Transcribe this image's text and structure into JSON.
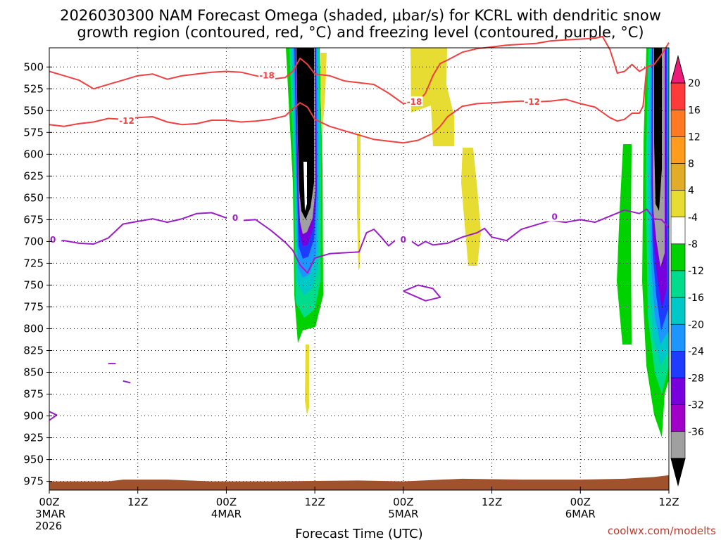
{
  "chart_data": {
    "type": "heatmap",
    "title_lines": [
      "2026030300 NAM Forecast Omega (shaded, μbar/s) for KCRL with dendritic snow",
      "growth region (contoured, red, °C) and freezing level (contoured, purple, °C)"
    ],
    "xlabel": "Forecast Time (UTC)",
    "credit": "coolwx.com/modelts",
    "x_ticks": [
      {
        "h": 0,
        "lines": [
          "00Z",
          "3MAR",
          "2026"
        ]
      },
      {
        "h": 12,
        "lines": [
          "12Z"
        ]
      },
      {
        "h": 24,
        "lines": [
          "00Z",
          "4MAR"
        ]
      },
      {
        "h": 36,
        "lines": [
          "12Z"
        ]
      },
      {
        "h": 48,
        "lines": [
          "00Z",
          "5MAR"
        ]
      },
      {
        "h": 60,
        "lines": [
          "12Z"
        ]
      },
      {
        "h": 72,
        "lines": [
          "00Z",
          "6MAR"
        ]
      },
      {
        "h": 84,
        "lines": [
          "12Z"
        ]
      }
    ],
    "xlim_hours": [
      0,
      84
    ],
    "y_ticks": [
      "500",
      "525",
      "550",
      "575",
      "600",
      "625",
      "650",
      "675",
      "700",
      "725",
      "750",
      "775",
      "800",
      "825",
      "850",
      "875",
      "900",
      "925",
      "950",
      "975"
    ],
    "ylim_hPa": [
      478,
      985
    ],
    "grid": true,
    "colorbar": {
      "labels": [
        "20",
        "16",
        "12",
        "8",
        "4",
        "-4",
        "-8",
        "-12",
        "-16",
        "-20",
        "-24",
        "-28",
        "-32",
        "-36"
      ],
      "colors": [
        "#ec1c7a",
        "#ff3a3a",
        "#ff7a22",
        "#ff9c1e",
        "#e1ad28",
        "#e6dc32",
        "#ffffff",
        "#00d200",
        "#00dc8c",
        "#00c8c8",
        "#1e96ff",
        "#1e3cff",
        "#7800dc",
        "#a000c8",
        "#a0a0a0",
        "#000000"
      ]
    },
    "contour_labels": {
      "dgz_warm": "-12",
      "dgz_cold": "-18",
      "freezing": "0"
    },
    "colors": {
      "dgz": "#f04040",
      "freezing": "#9a1ec8",
      "terrain": "#a0522d"
    },
    "series": [
      {
        "contour": "-18",
        "points": [
          [
            0,
            505
          ],
          [
            2,
            510
          ],
          [
            4,
            515
          ],
          [
            6,
            525
          ],
          [
            8,
            520
          ],
          [
            10,
            515
          ],
          [
            12,
            510
          ],
          [
            14,
            508
          ],
          [
            16,
            514
          ],
          [
            18,
            510
          ],
          [
            20,
            508
          ],
          [
            22,
            506
          ],
          [
            24,
            505
          ],
          [
            26,
            506
          ],
          [
            28,
            510
          ],
          [
            30,
            514
          ],
          [
            32,
            512
          ],
          [
            33,
            505
          ],
          [
            34,
            490
          ],
          [
            35,
            497
          ],
          [
            36,
            508
          ],
          [
            38,
            510
          ],
          [
            40,
            516
          ],
          [
            42,
            518
          ],
          [
            44,
            520
          ],
          [
            46,
            530
          ],
          [
            48,
            542
          ],
          [
            50,
            540
          ],
          [
            51,
            530
          ],
          [
            52,
            510
          ],
          [
            53,
            496
          ],
          [
            54,
            492
          ],
          [
            56,
            483
          ],
          [
            58,
            479
          ],
          [
            60,
            477
          ],
          [
            62,
            475
          ],
          [
            64,
            474
          ],
          [
            66,
            473
          ],
          [
            68,
            470
          ],
          [
            70,
            469
          ],
          [
            72,
            468
          ],
          [
            74,
            467
          ],
          [
            75,
            465
          ],
          [
            76,
            480
          ],
          [
            76.5,
            493
          ],
          [
            77,
            507
          ],
          [
            78,
            505
          ],
          [
            79,
            497
          ],
          [
            80,
            505
          ],
          [
            81,
            500
          ],
          [
            82,
            497
          ],
          [
            83,
            486
          ],
          [
            84,
            472
          ]
        ]
      },
      {
        "contour": "-12",
        "points": [
          [
            0,
            566
          ],
          [
            2,
            568
          ],
          [
            4,
            565
          ],
          [
            6,
            563
          ],
          [
            8,
            559
          ],
          [
            10,
            560
          ],
          [
            12,
            558
          ],
          [
            14,
            557
          ],
          [
            16,
            563
          ],
          [
            18,
            566
          ],
          [
            20,
            565
          ],
          [
            22,
            561
          ],
          [
            24,
            561
          ],
          [
            26,
            563
          ],
          [
            28,
            562
          ],
          [
            30,
            560
          ],
          [
            32,
            556
          ],
          [
            33,
            548
          ],
          [
            34,
            541
          ],
          [
            35,
            546
          ],
          [
            36,
            560
          ],
          [
            38,
            568
          ],
          [
            40,
            573
          ],
          [
            42,
            578
          ],
          [
            44,
            583
          ],
          [
            46,
            585
          ],
          [
            48,
            587
          ],
          [
            50,
            584
          ],
          [
            52,
            576
          ],
          [
            53,
            568
          ],
          [
            54,
            557
          ],
          [
            56,
            545
          ],
          [
            58,
            542
          ],
          [
            60,
            541
          ],
          [
            62,
            540
          ],
          [
            64,
            539
          ],
          [
            66,
            540
          ],
          [
            68,
            539
          ],
          [
            70,
            537
          ],
          [
            72,
            542
          ],
          [
            74,
            546
          ],
          [
            76,
            558
          ],
          [
            77,
            562
          ],
          [
            78,
            560
          ],
          [
            79,
            553
          ],
          [
            80,
            553
          ],
          [
            80.5,
            545
          ],
          [
            81,
            500
          ]
        ]
      },
      {
        "contour": "0",
        "points": [
          [
            0,
            700
          ],
          [
            2,
            699
          ],
          [
            4,
            702
          ],
          [
            6,
            703
          ],
          [
            8,
            696
          ],
          [
            10,
            680
          ],
          [
            12,
            677
          ],
          [
            14,
            674
          ],
          [
            16,
            678
          ],
          [
            18,
            674
          ],
          [
            20,
            668
          ],
          [
            22,
            667
          ],
          [
            24,
            673
          ],
          [
            26,
            676
          ],
          [
            28,
            675
          ],
          [
            30,
            687
          ],
          [
            32,
            701
          ],
          [
            33,
            710
          ],
          [
            34,
            727
          ],
          [
            35,
            736
          ],
          [
            36,
            719
          ],
          [
            38,
            714
          ],
          [
            40,
            713
          ],
          [
            42,
            712
          ],
          [
            43,
            690
          ],
          [
            44,
            686
          ],
          [
            45,
            695
          ],
          [
            46,
            705
          ],
          [
            47,
            698
          ],
          [
            48,
            696
          ],
          [
            49,
            699
          ],
          [
            50,
            705
          ],
          [
            51,
            700
          ],
          [
            52,
            704
          ],
          [
            54,
            702
          ],
          [
            56,
            695
          ],
          [
            58,
            690
          ],
          [
            59,
            685
          ],
          [
            60,
            695
          ],
          [
            62,
            699
          ],
          [
            64,
            686
          ],
          [
            66,
            681
          ],
          [
            68,
            676
          ],
          [
            70,
            678
          ],
          [
            72,
            675
          ],
          [
            74,
            678
          ],
          [
            76,
            671
          ],
          [
            78,
            664
          ],
          [
            80,
            668
          ],
          [
            81,
            663
          ],
          [
            82,
            674
          ],
          [
            83,
            675
          ],
          [
            84,
            684
          ]
        ]
      },
      {
        "contour": "0",
        "points": [
          [
            0,
            895
          ],
          [
            1,
            899
          ],
          [
            0,
            905
          ]
        ]
      },
      {
        "contour": "0",
        "points": [
          [
            8,
            840
          ],
          [
            9,
            840
          ]
        ]
      },
      {
        "contour": "0",
        "points": [
          [
            10,
            860
          ],
          [
            11,
            862
          ]
        ]
      },
      {
        "contour": "0",
        "points": [
          [
            48,
            757
          ],
          [
            50,
            750
          ],
          [
            52,
            754
          ],
          [
            53,
            764
          ],
          [
            51,
            768
          ],
          [
            48,
            757
          ]
        ]
      }
    ],
    "terrain": [
      [
        0,
        975
      ],
      [
        8,
        975
      ],
      [
        10,
        973
      ],
      [
        16,
        973
      ],
      [
        22,
        975
      ],
      [
        30,
        975
      ],
      [
        42,
        974
      ],
      [
        48,
        975
      ],
      [
        56,
        972
      ],
      [
        64,
        973
      ],
      [
        72,
        973
      ],
      [
        78,
        972
      ],
      [
        82,
        970
      ],
      [
        84,
        968
      ]
    ]
  }
}
